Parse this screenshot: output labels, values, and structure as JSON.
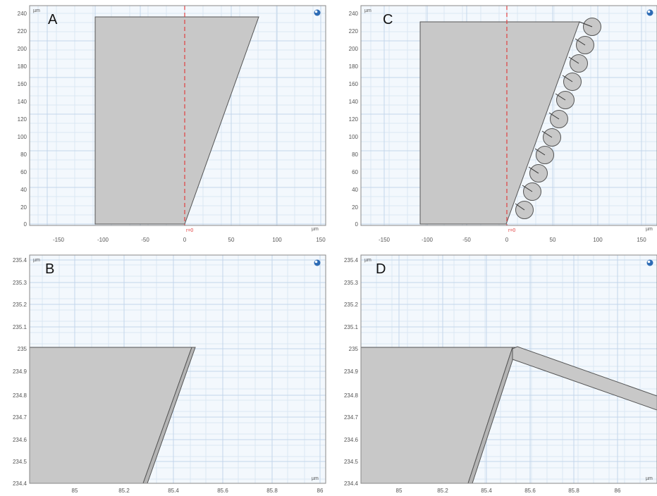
{
  "colors": {
    "plot_background": "#f3f8fd",
    "grid_minor": "#dbe7f3",
    "grid_major": "#c3d6ea",
    "geometry_fill": "#c8c8c8",
    "geometry_edge": "#555555",
    "symmetry_line": "#e04040",
    "icon_blue": "#2c6bb5"
  },
  "icons": {
    "view_badge": "globe-icon"
  },
  "panels": {
    "A": {
      "letter": "A",
      "unit": "µm",
      "origin_label": "r=0",
      "x_ticks": [
        "-150",
        "-100",
        "-50",
        "0",
        "50",
        "100",
        "150"
      ],
      "y_ticks": [
        "0",
        "20",
        "40",
        "60",
        "80",
        "100",
        "120",
        "140",
        "160",
        "180",
        "200",
        "220",
        "240"
      ],
      "x_range": [
        -200,
        155
      ],
      "y_range": [
        -8,
        243
      ]
    },
    "B": {
      "letter": "B",
      "unit": "µm",
      "x_ticks": [
        "85",
        "85.2",
        "85.4",
        "85.6",
        "85.8",
        "86"
      ],
      "y_ticks": [
        "234.4",
        "234.5",
        "234.6",
        "234.7",
        "234.8",
        "234.9",
        "235",
        "235.1",
        "235.2",
        "235.3",
        "235.4"
      ],
      "x_range": [
        84.83,
        86.04
      ],
      "y_range": [
        234.4,
        235.42
      ]
    },
    "C": {
      "letter": "C",
      "unit": "µm",
      "origin_label": "r=0",
      "x_ticks": [
        "-150",
        "-100",
        "-50",
        "0",
        "50",
        "100",
        "150"
      ],
      "y_ticks": [
        "0",
        "20",
        "40",
        "60",
        "80",
        "100",
        "120",
        "140",
        "160",
        "180",
        "200",
        "220",
        "240"
      ],
      "x_range": [
        -163,
        165
      ],
      "y_range": [
        -8,
        243
      ]
    },
    "D": {
      "letter": "D",
      "unit": "µm",
      "x_ticks": [
        "85",
        "85.2",
        "85.4",
        "85.6",
        "85.8",
        "86"
      ],
      "y_ticks": [
        "234.4",
        "234.5",
        "234.6",
        "234.7",
        "234.8",
        "234.9",
        "235",
        "235.1",
        "235.2",
        "235.3",
        "235.4"
      ],
      "x_range": [
        84.83,
        86.18
      ],
      "y_range": [
        234.4,
        235.42
      ]
    }
  }
}
